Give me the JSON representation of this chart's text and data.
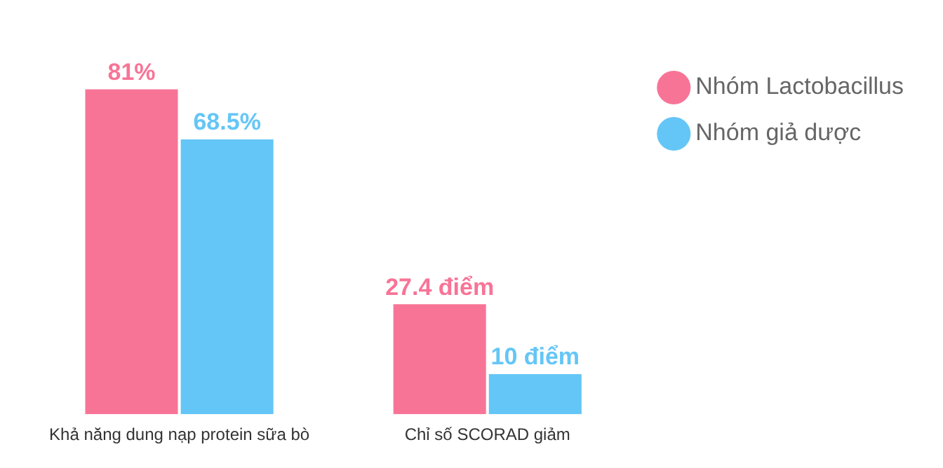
{
  "chart_data": {
    "type": "bar",
    "categories": [
      "Khả năng dung nạp protein sữa bò",
      "Chỉ số SCORAD giảm"
    ],
    "series": [
      {
        "name": "Nhóm Lactobacillus",
        "color": "#f87497",
        "values": [
          81,
          27.4
        ],
        "value_labels": [
          "81%",
          "27.4 điểm"
        ]
      },
      {
        "name": "Nhóm giả dược",
        "color": "#64c6f6",
        "values": [
          68.5,
          10
        ],
        "value_labels": [
          "68.5%",
          "10 điểm"
        ]
      }
    ],
    "legend": "top right",
    "grid": false
  }
}
